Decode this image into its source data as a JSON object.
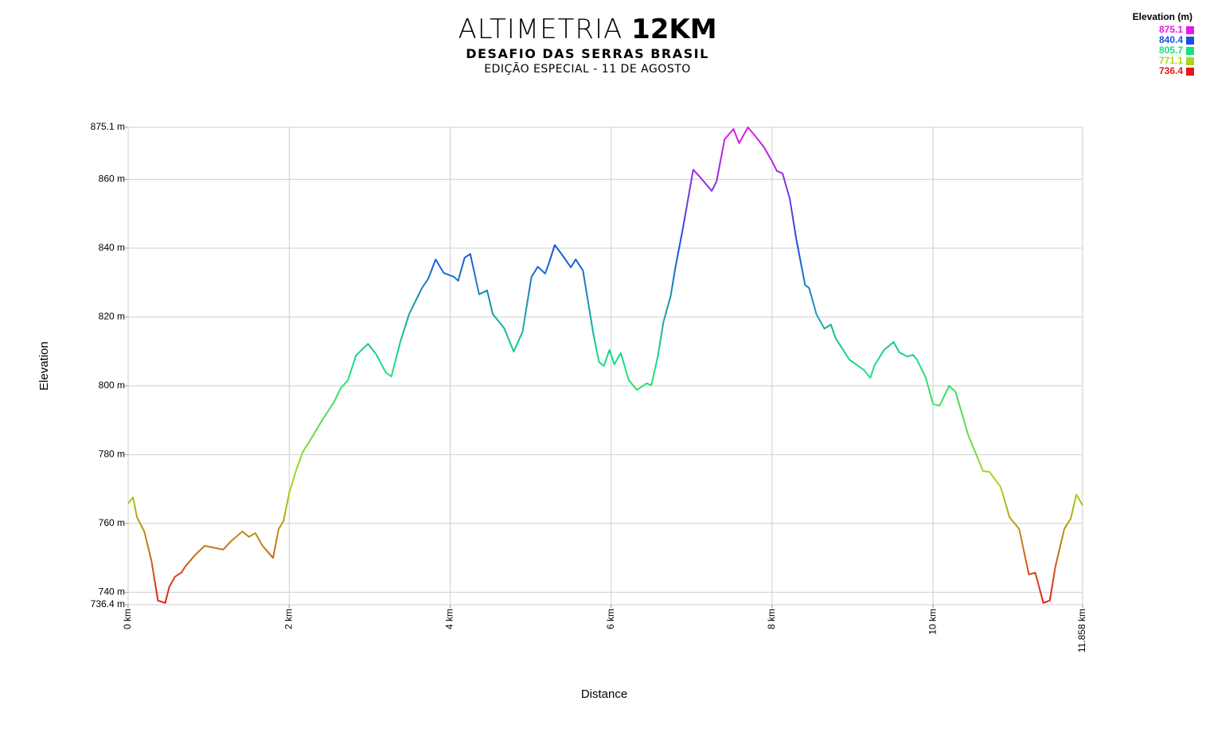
{
  "chart_data": {
    "type": "line",
    "title": "ALTIMETRIA",
    "title_emphasis": "12KM",
    "subtitle": "DESAFIO DAS SERRAS BRASIL",
    "caption": "EDIÇÃO ESPECIAL - 11 DE AGOSTO",
    "x_label": "Distance",
    "y_label": "Elevation",
    "legend": {
      "title": "Elevation (m)",
      "position": "top-right",
      "items": [
        {
          "value": 875.1,
          "color": "#e619e6"
        },
        {
          "value": 840.4,
          "color": "#1a4fe0"
        },
        {
          "value": 805.7,
          "color": "#19e080"
        },
        {
          "value": 771.1,
          "color": "#a6d81a"
        },
        {
          "value": 736.4,
          "color": "#e01a1a"
        }
      ]
    },
    "xlim": [
      0,
      11.858
    ],
    "ylim": [
      736.4,
      875.1
    ],
    "xticks": [
      {
        "value": 0,
        "label": "0 km"
      },
      {
        "value": 2,
        "label": "2 km"
      },
      {
        "value": 4,
        "label": "4 km"
      },
      {
        "value": 6,
        "label": "6 km"
      },
      {
        "value": 8,
        "label": "8 km"
      },
      {
        "value": 10,
        "label": "10 km"
      },
      {
        "value": 11.858,
        "label": "11.858 km"
      }
    ],
    "yticks": [
      {
        "value": 736.4,
        "label": "736.4 m"
      },
      {
        "value": 740,
        "label": "740 m"
      },
      {
        "value": 760,
        "label": "760 m"
      },
      {
        "value": 780,
        "label": "780 m"
      },
      {
        "value": 800,
        "label": "800 m"
      },
      {
        "value": 820,
        "label": "820 m"
      },
      {
        "value": 840,
        "label": "840 m"
      },
      {
        "value": 860,
        "label": "860 m"
      },
      {
        "value": 875.1,
        "label": "875.1 m"
      }
    ],
    "grid": true,
    "x": [
      0,
      0.06,
      0.11,
      0.2,
      0.29,
      0.37,
      0.46,
      0.51,
      0.58,
      0.66,
      0.71,
      0.83,
      0.95,
      1.18,
      1.28,
      1.42,
      1.5,
      1.58,
      1.67,
      1.8,
      1.87,
      1.93,
      2.0,
      2.09,
      2.17,
      2.28,
      2.41,
      2.56,
      2.64,
      2.73,
      2.83,
      2.98,
      3.08,
      3.2,
      3.27,
      3.38,
      3.49,
      3.65,
      3.73,
      3.82,
      3.92,
      4.05,
      4.1,
      4.18,
      4.25,
      4.36,
      4.46,
      4.53,
      4.67,
      4.79,
      4.9,
      5.01,
      5.09,
      5.18,
      5.23,
      5.3,
      5.39,
      5.5,
      5.56,
      5.65,
      5.78,
      5.85,
      5.91,
      5.98,
      6.04,
      6.12,
      6.22,
      6.32,
      6.44,
      6.5,
      6.58,
      6.65,
      6.74,
      6.8,
      6.89,
      6.93,
      7.02,
      7.11,
      7.25,
      7.31,
      7.41,
      7.52,
      7.59,
      7.7,
      7.8,
      7.9,
      8.0,
      8.06,
      8.13,
      8.22,
      8.3,
      8.41,
      8.46,
      8.55,
      8.65,
      8.73,
      8.79,
      8.96,
      9.14,
      9.22,
      9.27,
      9.39,
      9.51,
      9.58,
      9.68,
      9.75,
      9.8,
      9.91,
      10.0,
      10.08,
      10.2,
      10.28,
      10.44,
      10.53,
      10.62,
      10.7,
      10.84,
      10.95,
      11.07,
      11.19,
      11.27,
      11.37,
      11.45,
      11.52,
      11.63,
      11.71,
      11.78,
      11.858
    ],
    "series": [
      {
        "name": "Elevation",
        "values": [
          765.8,
          767.6,
          761.8,
          757.7,
          749.1,
          737.6,
          736.9,
          741.5,
          744.5,
          745.7,
          747.5,
          750.8,
          753.5,
          752.4,
          754.9,
          757.7,
          756.1,
          757.2,
          753.5,
          750.0,
          758.4,
          760.7,
          768.8,
          775.7,
          780.8,
          784.9,
          790.0,
          795.4,
          799.3,
          801.6,
          808.8,
          812.2,
          809.2,
          803.9,
          802.7,
          812.7,
          820.8,
          828.4,
          831.2,
          836.7,
          832.8,
          831.6,
          830.5,
          837.2,
          838.3,
          826.6,
          827.7,
          820.8,
          816.8,
          809.9,
          815.7,
          831.6,
          834.6,
          832.6,
          835.8,
          840.9,
          838.1,
          834.4,
          836.7,
          833.5,
          815.0,
          806.9,
          805.8,
          810.4,
          806.2,
          809.5,
          801.6,
          798.8,
          800.7,
          800.2,
          808.5,
          818.5,
          826.1,
          834.6,
          845.5,
          850.8,
          862.8,
          860.5,
          856.6,
          859.4,
          871.6,
          874.6,
          870.5,
          875.1,
          872.3,
          869.3,
          865.2,
          862.4,
          861.7,
          854.3,
          842.7,
          829.3,
          828.4,
          820.8,
          816.6,
          817.8,
          813.8,
          807.6,
          804.6,
          802.3,
          805.8,
          810.4,
          812.7,
          809.7,
          808.5,
          809.0,
          807.6,
          802.3,
          794.7,
          794.2,
          800.0,
          798.2,
          785.4,
          780.4,
          775.2,
          775.0,
          770.6,
          761.8,
          758.4,
          745.2,
          745.7,
          736.9,
          737.6,
          747.5,
          758.4,
          761.4,
          768.4,
          765.3
        ]
      }
    ]
  }
}
